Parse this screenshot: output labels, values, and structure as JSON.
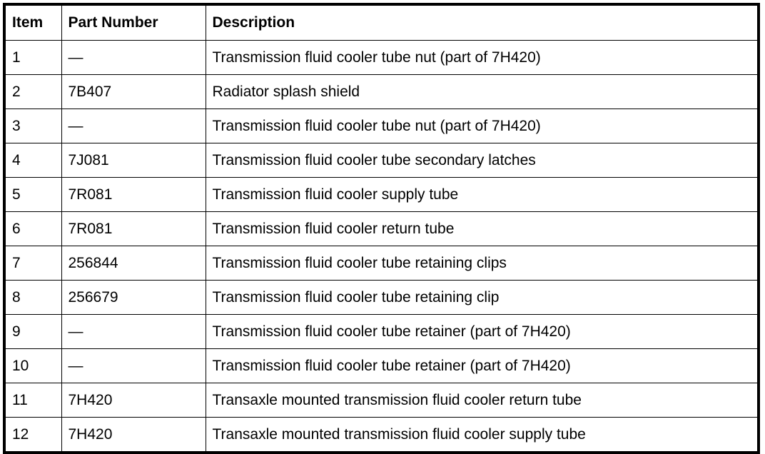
{
  "headers": [
    "Item",
    "Part Number",
    "Description"
  ],
  "rows": [
    [
      "1",
      "—",
      "Transmission fluid cooler tube nut (part of 7H420)"
    ],
    [
      "2",
      "7B407",
      "Radiator splash shield"
    ],
    [
      "3",
      "—",
      "Transmission fluid cooler tube nut (part of 7H420)"
    ],
    [
      "4",
      "7J081",
      "Transmission fluid cooler tube secondary latches"
    ],
    [
      "5",
      "7R081",
      "Transmission fluid cooler supply tube"
    ],
    [
      "6",
      "7R081",
      "Transmission fluid cooler return tube"
    ],
    [
      "7",
      "256844",
      "Transmission fluid cooler tube retaining clips"
    ],
    [
      "8",
      "256679",
      "Transmission fluid cooler tube retaining clip"
    ],
    [
      "9",
      "—",
      "Transmission fluid cooler tube retainer (part of 7H420)"
    ],
    [
      "10",
      "—",
      "Transmission fluid cooler tube retainer (part of 7H420)"
    ],
    [
      "11",
      "7H420",
      "Transaxle mounted transmission fluid cooler return tube"
    ],
    [
      "12",
      "7H420",
      "Transaxle mounted transmission fluid cooler supply tube"
    ]
  ]
}
